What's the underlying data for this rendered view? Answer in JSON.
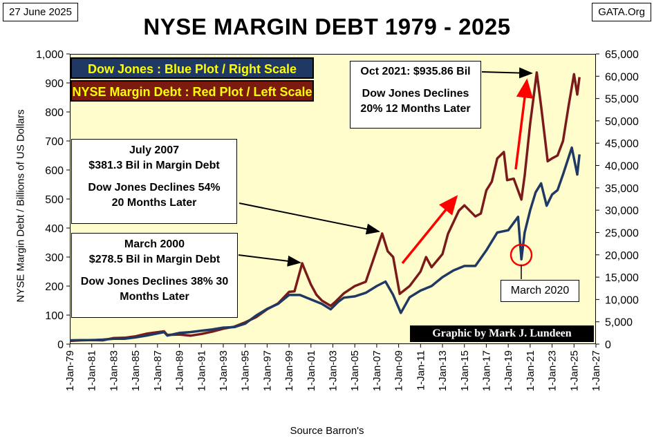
{
  "header": {
    "date": "27 June 2025",
    "site": "GATA.Org"
  },
  "source_note": "Source Barron's",
  "credit": "Graphic by Mark J. Lundeen",
  "chart_data": {
    "type": "line",
    "title": "NYSE MARGIN DEBT 1979 - 2025",
    "ylabel_left": "NYSE Margin Debt  /  Billions of US  Dollars",
    "ylim_left": [
      0,
      1000
    ],
    "left_ticks": [
      "0",
      "100",
      "200",
      "300",
      "400",
      "500",
      "600",
      "700",
      "800",
      "900",
      "1,000"
    ],
    "ylim_right": [
      0,
      65000
    ],
    "right_ticks": [
      "0",
      "5,000",
      "10,000",
      "15,000",
      "20,000",
      "25,000",
      "30,000",
      "35,000",
      "40,000",
      "45,000",
      "50,000",
      "55,000",
      "60,000",
      "65,000"
    ],
    "xlim": [
      1979,
      2027
    ],
    "x_ticks": [
      "1-Jan-79",
      "1-Jan-81",
      "1-Jan-83",
      "1-Jan-85",
      "1-Jan-87",
      "1-Jan-89",
      "1-Jan-91",
      "1-Jan-93",
      "1-Jan-95",
      "1-Jan-97",
      "1-Jan-99",
      "1-Jan-01",
      "1-Jan-03",
      "1-Jan-05",
      "1-Jan-07",
      "1-Jan-09",
      "1-Jan-11",
      "1-Jan-13",
      "1-Jan-15",
      "1-Jan-17",
      "1-Jan-19",
      "1-Jan-21",
      "1-Jan-23",
      "1-Jan-25",
      "1-Jan-27"
    ],
    "legend": [
      {
        "text": "Dow Jones : Blue Plot / Right Scale",
        "bg": "#1f3864",
        "fg": "#ffff00"
      },
      {
        "text": "NYSE Margin Debt : Red Plot / Left Scale",
        "bg": "#7b1a0e",
        "fg": "#ffff00"
      }
    ],
    "series": [
      {
        "axis": "left",
        "color": "#7b1a1a",
        "points": [
          [
            1979,
            11
          ],
          [
            1980,
            13
          ],
          [
            1981,
            14
          ],
          [
            1982,
            13
          ],
          [
            1983,
            21
          ],
          [
            1984,
            22
          ],
          [
            1985,
            27
          ],
          [
            1986,
            36
          ],
          [
            1987.6,
            44
          ],
          [
            1987.9,
            31
          ],
          [
            1988,
            32
          ],
          [
            1989,
            33
          ],
          [
            1990,
            29
          ],
          [
            1991,
            35
          ],
          [
            1992,
            43
          ],
          [
            1993,
            53
          ],
          [
            1994,
            60
          ],
          [
            1995,
            75
          ],
          [
            1996,
            93
          ],
          [
            1997,
            120
          ],
          [
            1998,
            140
          ],
          [
            1999,
            180
          ],
          [
            1999.5,
            182
          ],
          [
            2000.2,
            278.5
          ],
          [
            2000.5,
            250
          ],
          [
            2001,
            205
          ],
          [
            2001.5,
            170
          ],
          [
            2002,
            150
          ],
          [
            2002.8,
            132
          ],
          [
            2003.2,
            145
          ],
          [
            2004,
            175
          ],
          [
            2005,
            200
          ],
          [
            2006,
            215
          ],
          [
            2006.5,
            270
          ],
          [
            2007.5,
            381.3
          ],
          [
            2008,
            320
          ],
          [
            2008.5,
            300
          ],
          [
            2009.1,
            173
          ],
          [
            2010,
            200
          ],
          [
            2011,
            250
          ],
          [
            2011.5,
            300
          ],
          [
            2012,
            265
          ],
          [
            2013,
            310
          ],
          [
            2013.5,
            380
          ],
          [
            2014.5,
            460
          ],
          [
            2015,
            478
          ],
          [
            2016,
            440
          ],
          [
            2016.5,
            450
          ],
          [
            2017,
            530
          ],
          [
            2017.5,
            560
          ],
          [
            2018,
            640
          ],
          [
            2018.6,
            662
          ],
          [
            2018.9,
            565
          ],
          [
            2019.5,
            570
          ],
          [
            2020.2,
            498
          ],
          [
            2020.5,
            580
          ],
          [
            2021,
            760
          ],
          [
            2021.6,
            935.86
          ],
          [
            2022,
            820
          ],
          [
            2022.6,
            630
          ],
          [
            2023,
            640
          ],
          [
            2023.5,
            650
          ],
          [
            2024,
            700
          ],
          [
            2024.5,
            820
          ],
          [
            2025,
            930
          ],
          [
            2025.3,
            860
          ],
          [
            2025.5,
            920
          ]
        ]
      },
      {
        "axis": "right",
        "color": "#1f3864",
        "points": [
          [
            1979,
            850
          ],
          [
            1980,
            880
          ],
          [
            1981,
            900
          ],
          [
            1982,
            1000
          ],
          [
            1983,
            1200
          ],
          [
            1984,
            1200
          ],
          [
            1985,
            1500
          ],
          [
            1986,
            1900
          ],
          [
            1987.6,
            2700
          ],
          [
            1987.9,
            1900
          ],
          [
            1989,
            2500
          ],
          [
            1990,
            2700
          ],
          [
            1991,
            3000
          ],
          [
            1992,
            3300
          ],
          [
            1993,
            3700
          ],
          [
            1994,
            3800
          ],
          [
            1995,
            4600
          ],
          [
            1996,
            6400
          ],
          [
            1997,
            7900
          ],
          [
            1998,
            9000
          ],
          [
            1999,
            11000
          ],
          [
            2000,
            11000
          ],
          [
            2001,
            10000
          ],
          [
            2002,
            9000
          ],
          [
            2002.8,
            7800
          ],
          [
            2003.5,
            9500
          ],
          [
            2004,
            10400
          ],
          [
            2005,
            10700
          ],
          [
            2006,
            11500
          ],
          [
            2007,
            13000
          ],
          [
            2007.8,
            14000
          ],
          [
            2008.5,
            11000
          ],
          [
            2009.2,
            7000
          ],
          [
            2010,
            10500
          ],
          [
            2011,
            12000
          ],
          [
            2012,
            13000
          ],
          [
            2013,
            15000
          ],
          [
            2014,
            16500
          ],
          [
            2015,
            17500
          ],
          [
            2016,
            17500
          ],
          [
            2017,
            21000
          ],
          [
            2018,
            25000
          ],
          [
            2019,
            25500
          ],
          [
            2019.9,
            28500
          ],
          [
            2020.2,
            19000
          ],
          [
            2020.5,
            25000
          ],
          [
            2021,
            30000
          ],
          [
            2021.5,
            34000
          ],
          [
            2022,
            36000
          ],
          [
            2022.5,
            31000
          ],
          [
            2023,
            33500
          ],
          [
            2023.5,
            34500
          ],
          [
            2024,
            38000
          ],
          [
            2024.8,
            44000
          ],
          [
            2025.3,
            38000
          ],
          [
            2025.5,
            42500
          ]
        ]
      }
    ],
    "annotations": [
      {
        "lines": [
          "Oct 2021: $935.86 Bil",
          "Dow Jones Declines",
          "20% 12 Months Later"
        ]
      },
      {
        "lines": [
          "July 2007",
          "$381.3 Bil in Margin Debt",
          "Dow Jones Declines 54%",
          "20 Months Later"
        ]
      },
      {
        "lines": [
          "March 2000",
          "$278.5 Bil in Margin Debt",
          "Dow Jones Declines 38% 30",
          "Months Later"
        ]
      },
      {
        "lines": [
          "March 2020"
        ]
      }
    ]
  }
}
